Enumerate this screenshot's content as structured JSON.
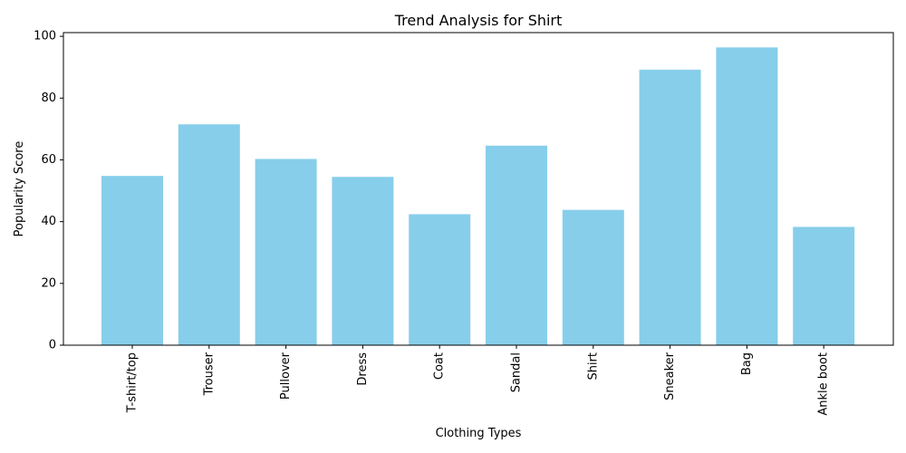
{
  "chart_data": {
    "type": "bar",
    "title": "Trend Analysis for Shirt",
    "xlabel": "Clothing Types",
    "ylabel": "Popularity Score",
    "categories": [
      "T-shirt/top",
      "Trouser",
      "Pullover",
      "Dress",
      "Coat",
      "Sandal",
      "Shirt",
      "Sneaker",
      "Bag",
      "Ankle boot"
    ],
    "values": [
      54.8,
      71.5,
      60.3,
      54.5,
      42.4,
      64.6,
      43.8,
      89.2,
      96.4,
      38.3
    ],
    "ylim": [
      0,
      101.2
    ],
    "yticks": [
      0,
      20,
      40,
      60,
      80,
      100
    ],
    "bar_color": "#87CEEB",
    "grid": false,
    "legend": "none"
  }
}
